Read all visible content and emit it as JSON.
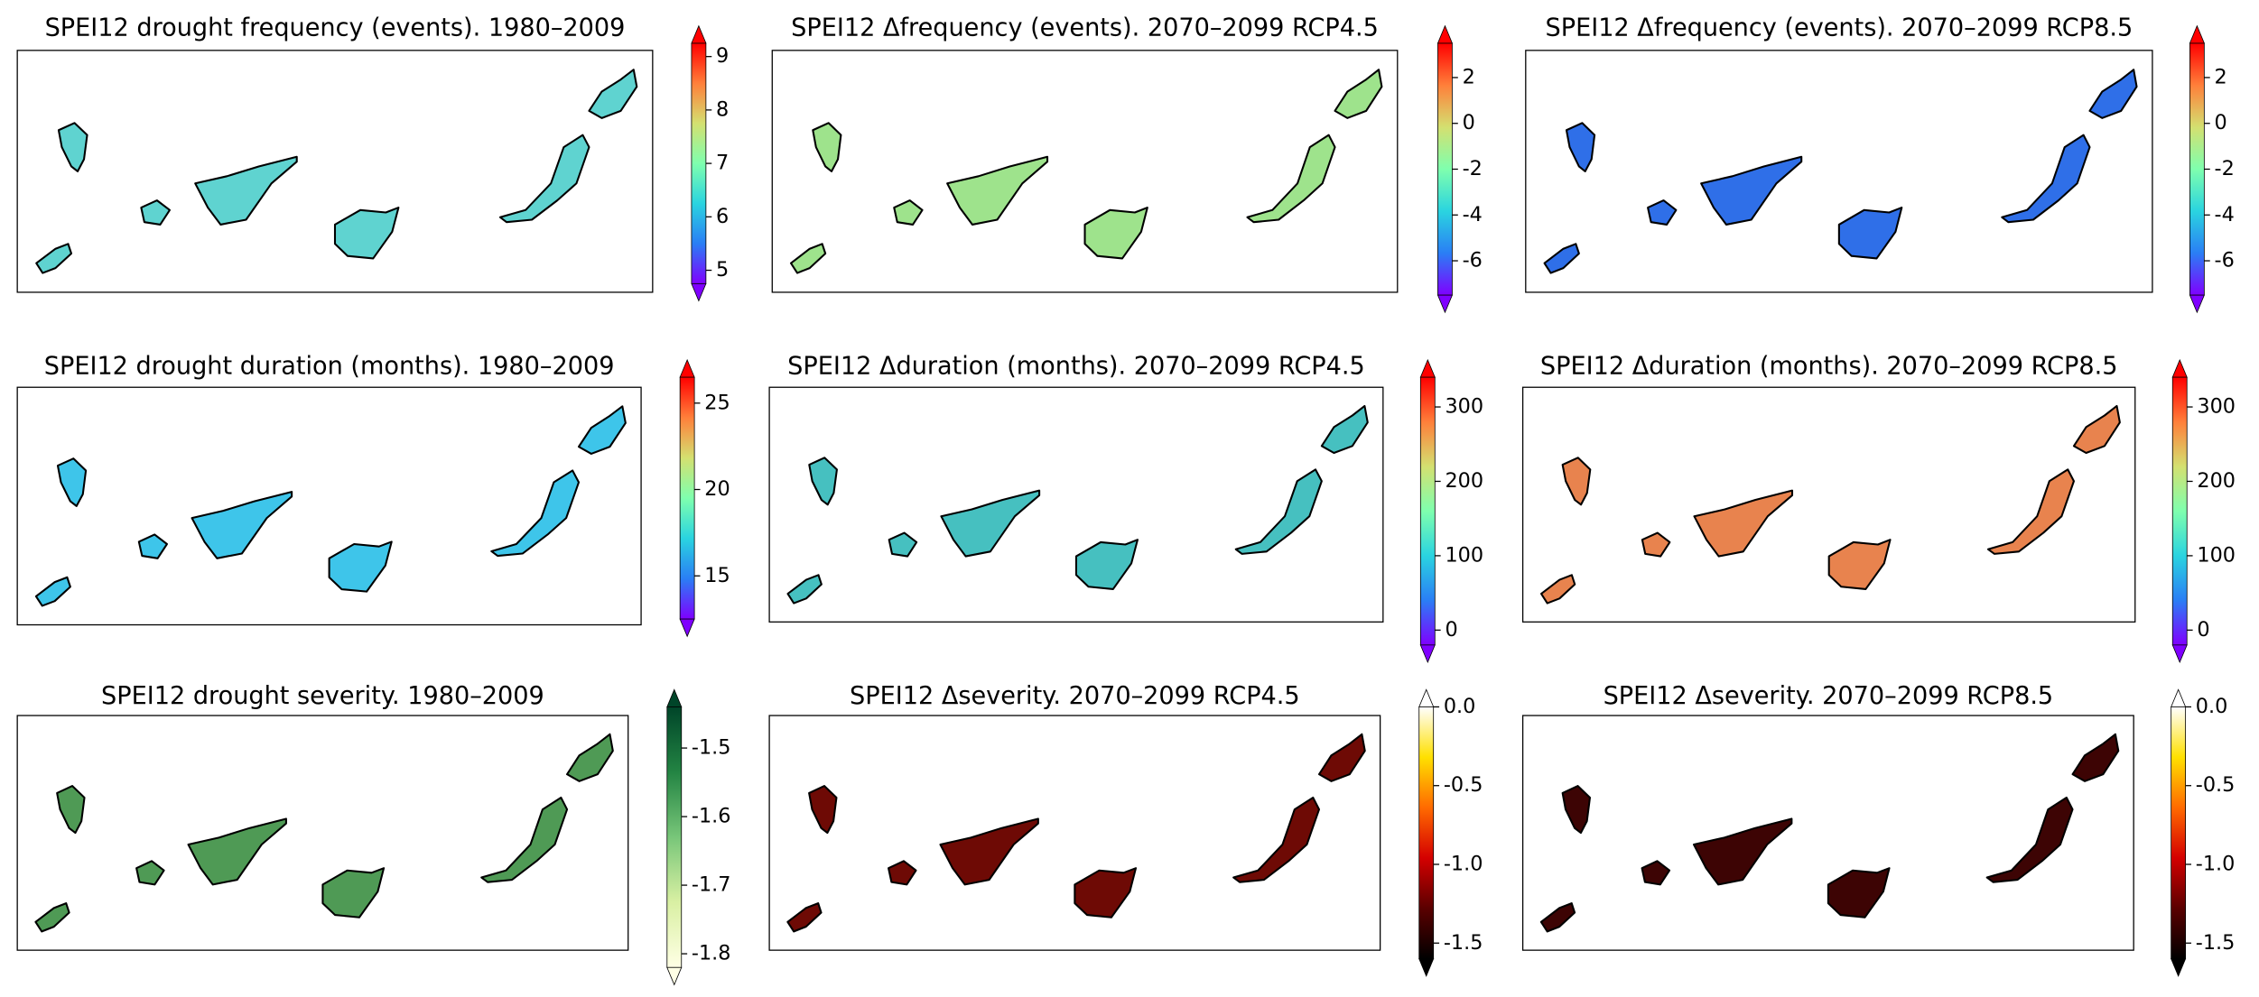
{
  "panels": [
    {
      "title": "SPEI12 drought frequency (events). 1980–2009",
      "island_fill": "#5fd3d0",
      "colorbar": {
        "lim": [
          4.75,
          9.25
        ],
        "ticks": [
          5,
          6,
          7,
          8,
          9
        ],
        "colors": [
          "#7f00ff",
          "#2a7ef5",
          "#2ad4e0",
          "#7fffae",
          "#d4e070",
          "#ff7f3a",
          "#ff0000"
        ]
      }
    },
    {
      "title": "SPEI12 Δfrequency (events). 2070–2099 RCP4.5",
      "island_fill": "#9ee38c",
      "colorbar": {
        "lim": [
          -7.5,
          3.5
        ],
        "ticks": [
          -6,
          -4,
          -2,
          0,
          2
        ],
        "colors": [
          "#7f00ff",
          "#2a7ef5",
          "#2ad4e0",
          "#7fffae",
          "#d4e070",
          "#ff7f3a",
          "#ff0000"
        ]
      }
    },
    {
      "title": "SPEI12 Δfrequency (events). 2070–2099 RCP8.5",
      "island_fill": "#2f6fe8",
      "colorbar": {
        "lim": [
          -7.5,
          3.5
        ],
        "ticks": [
          -6,
          -4,
          -2,
          0,
          2
        ],
        "colors": [
          "#7f00ff",
          "#2a7ef5",
          "#2ad4e0",
          "#7fffae",
          "#d4e070",
          "#ff7f3a",
          "#ff0000"
        ]
      }
    },
    {
      "title": "SPEI12 drought duration (months). 1980–2009",
      "island_fill": "#3ec5ea",
      "colorbar": {
        "lim": [
          12.5,
          26.5
        ],
        "ticks": [
          15,
          20,
          25
        ],
        "colors": [
          "#7f00ff",
          "#2a7ef5",
          "#2ad4e0",
          "#7fffae",
          "#d4e070",
          "#ff7f3a",
          "#ff0000"
        ]
      }
    },
    {
      "title": "SPEI12 Δduration (months). 2070–2099 RCP4.5",
      "island_fill": "#46c0c0",
      "colorbar": {
        "lim": [
          -20,
          340
        ],
        "ticks": [
          0,
          100,
          200,
          300
        ],
        "colors": [
          "#7f00ff",
          "#2a7ef5",
          "#2ad4e0",
          "#7fffae",
          "#d4e070",
          "#ff7f3a",
          "#ff0000"
        ]
      }
    },
    {
      "title": "SPEI12 Δduration (months). 2070–2099 RCP8.5",
      "island_fill": "#e8834e",
      "colorbar": {
        "lim": [
          -20,
          340
        ],
        "ticks": [
          0,
          100,
          200,
          300
        ],
        "colors": [
          "#7f00ff",
          "#2a7ef5",
          "#2ad4e0",
          "#7fffae",
          "#d4e070",
          "#ff7f3a",
          "#ff0000"
        ]
      }
    },
    {
      "title": "SPEI12 drought severity. 1980–2009",
      "island_fill": "#4f9a55",
      "colorbar": {
        "lim": [
          -1.82,
          -1.44
        ],
        "ticks": [
          -1.8,
          -1.7,
          -1.6,
          -1.5
        ],
        "colors": [
          "#ffffe5",
          "#d9f0a3",
          "#78c679",
          "#238443",
          "#004529"
        ]
      }
    },
    {
      "title": "SPEI12 Δseverity. 2070–2099 RCP4.5",
      "island_fill": "#6e0a05",
      "colorbar": {
        "lim": [
          -1.6,
          0
        ],
        "ticks": [
          -1.5,
          {
            "value": -1,
            "label": "-1.0"
          },
          -0.5,
          {
            "value": 0,
            "label": "0.0"
          }
        ],
        "colors": [
          "#000000",
          "#5a0000",
          "#d40000",
          "#ff6a00",
          "#ffe000",
          "#ffffff"
        ]
      }
    },
    {
      "title": "SPEI12 Δseverity. 2070–2099 RCP8.5",
      "island_fill": "#3d0404",
      "colorbar": {
        "lim": [
          -1.6,
          0
        ],
        "ticks": [
          -1.5,
          {
            "value": -1,
            "label": "-1.0"
          },
          -0.5,
          {
            "value": 0,
            "label": "0.0"
          }
        ],
        "colors": [
          "#000000",
          "#5a0000",
          "#d40000",
          "#ff6a00",
          "#ffe000",
          "#ffffff"
        ]
      }
    }
  ]
}
